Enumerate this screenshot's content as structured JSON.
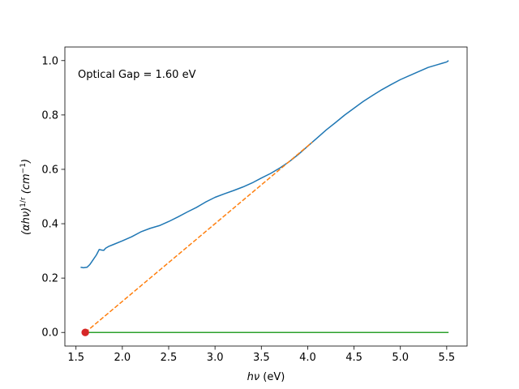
{
  "chart_data": {
    "type": "line",
    "annotation": "Optical Gap = 1.60 eV",
    "xlabel": "hν (eV)",
    "ylabel": "(αhν)^1/r (cm^−1)",
    "xlim": [
      1.38,
      5.72
    ],
    "ylim": [
      -0.05,
      1.05
    ],
    "grid": false,
    "x_ticks": [
      1.5,
      2.0,
      2.5,
      3.0,
      3.5,
      4.0,
      4.5,
      5.0,
      5.5
    ],
    "x_tick_labels": [
      "1.5",
      "2.0",
      "2.5",
      "3.0",
      "3.5",
      "4.0",
      "4.5",
      "5.0",
      "5.5"
    ],
    "y_ticks": [
      0.0,
      0.2,
      0.4,
      0.6,
      0.8,
      1.0
    ],
    "y_tick_labels": [
      "0.0",
      "0.2",
      "0.4",
      "0.6",
      "0.8",
      "1.0"
    ],
    "series": [
      {
        "style": "solid",
        "color": "#1f77b4",
        "x": [
          1.55,
          1.58,
          1.62,
          1.65,
          1.68,
          1.72,
          1.75,
          1.78,
          1.8,
          1.82,
          1.85,
          1.9,
          2.0,
          2.1,
          2.2,
          2.3,
          2.4,
          2.5,
          2.6,
          2.7,
          2.8,
          2.9,
          3.0,
          3.1,
          3.2,
          3.3,
          3.4,
          3.5,
          3.6,
          3.7,
          3.8,
          3.9,
          4.0,
          4.1,
          4.2,
          4.3,
          4.4,
          4.5,
          4.6,
          4.7,
          4.8,
          4.9,
          5.0,
          5.1,
          5.2,
          5.3,
          5.4,
          5.45,
          5.5,
          5.52
        ],
        "y": [
          0.24,
          0.238,
          0.24,
          0.25,
          0.265,
          0.285,
          0.305,
          0.303,
          0.302,
          0.31,
          0.316,
          0.323,
          0.337,
          0.352,
          0.37,
          0.383,
          0.393,
          0.408,
          0.425,
          0.443,
          0.46,
          0.48,
          0.497,
          0.51,
          0.522,
          0.535,
          0.55,
          0.568,
          0.585,
          0.605,
          0.628,
          0.655,
          0.685,
          0.715,
          0.745,
          0.772,
          0.8,
          0.825,
          0.85,
          0.872,
          0.893,
          0.912,
          0.93,
          0.945,
          0.96,
          0.975,
          0.985,
          0.99,
          0.995,
          1.0
        ]
      },
      {
        "style": "dashed",
        "color": "#ff7f0e",
        "x": [
          1.6,
          4.05
        ],
        "y": [
          0.0,
          0.7
        ]
      },
      {
        "style": "solid",
        "color": "#2ca02c",
        "x": [
          1.6,
          5.52
        ],
        "y": [
          0.0,
          0.0
        ]
      }
    ],
    "markers": [
      {
        "x": 1.6,
        "y": 0.0,
        "color": "#d62728"
      }
    ]
  }
}
